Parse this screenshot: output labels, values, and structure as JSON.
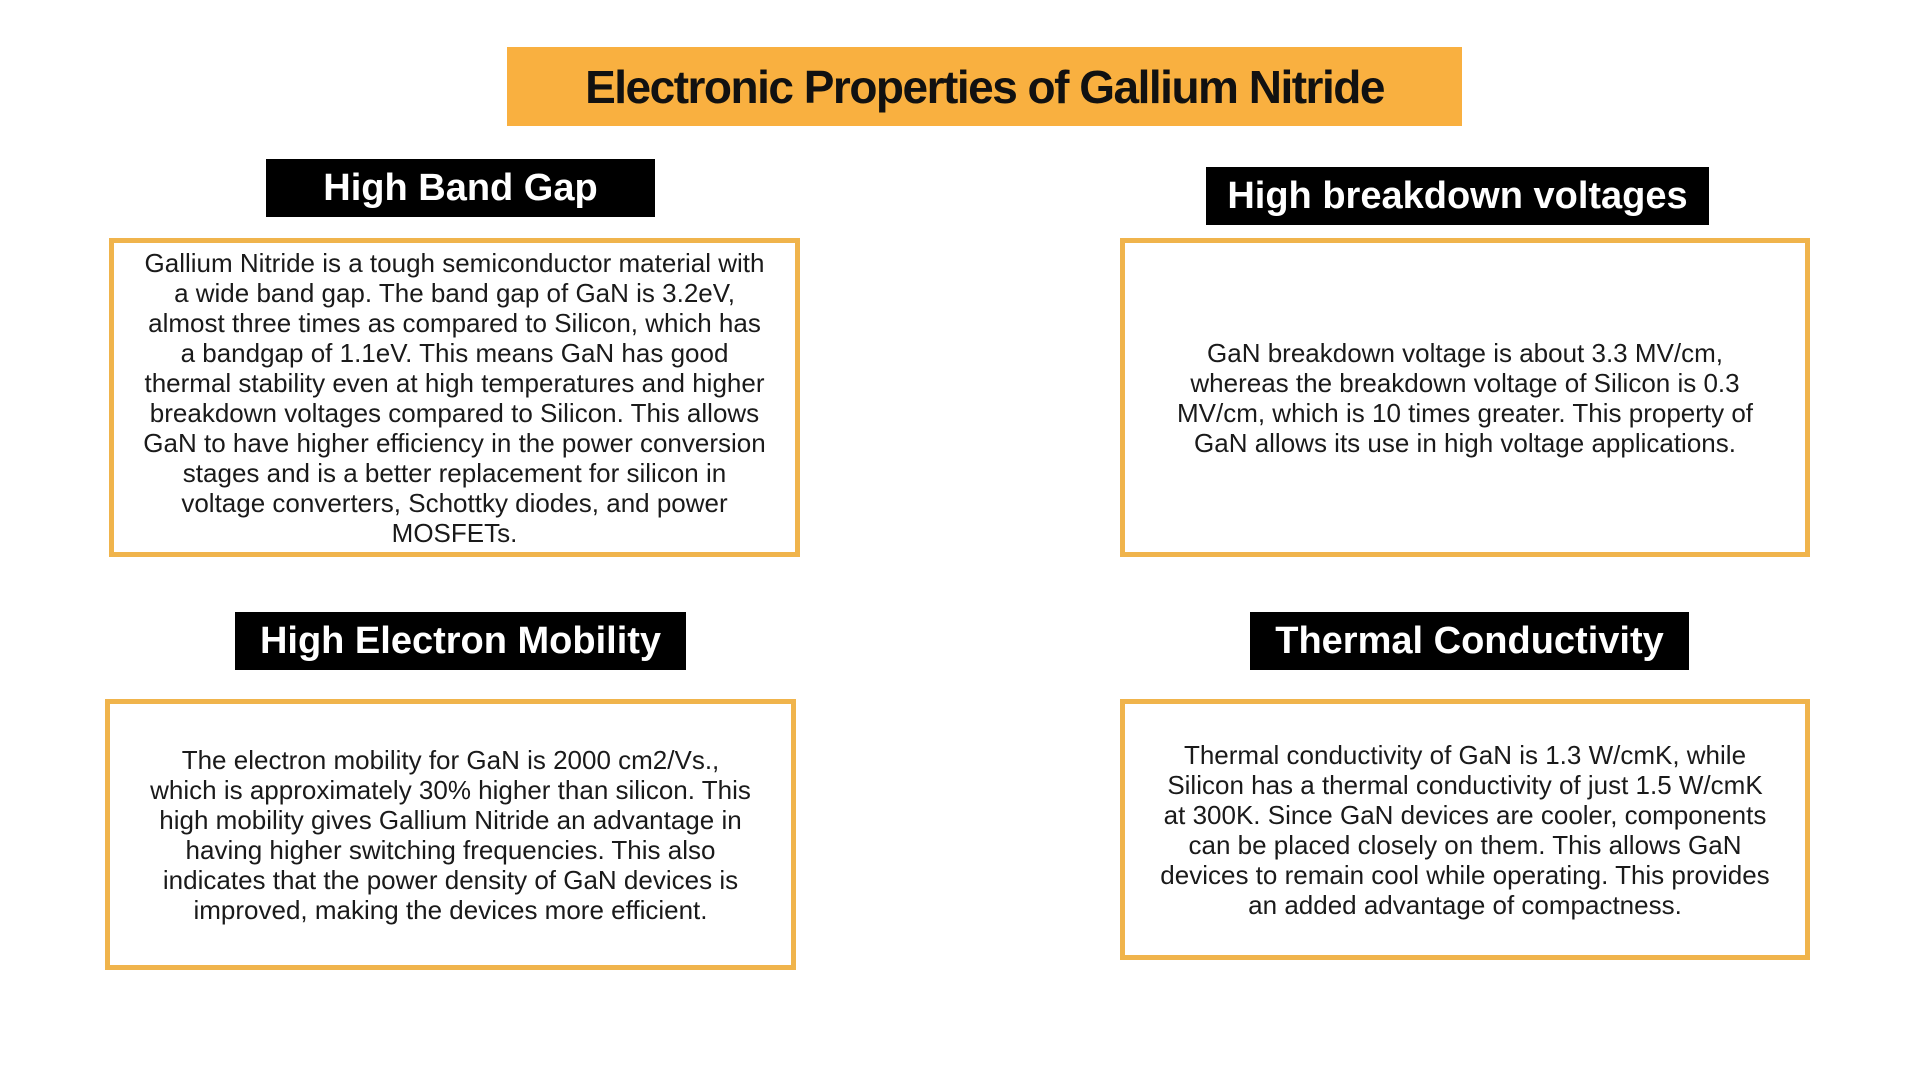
{
  "title": "Electronic Properties of Gallium Nitride",
  "accent_color": "#f9b040",
  "border_color": "#f0b44c",
  "sections": [
    {
      "heading": "High Band Gap",
      "body": "Gallium Nitride is a tough semiconductor material with a wide band gap. The band gap of GaN is 3.2eV, almost three times as compared to Silicon, which has a bandgap of 1.1eV. This means GaN has good thermal stability even at high temperatures and higher breakdown voltages compared to Silicon. This allows GaN to have higher efficiency in the power conversion stages and is a better replacement for silicon in voltage converters, Schottky diodes, and power MOSFETs."
    },
    {
      "heading": "High breakdown voltages",
      "body": "GaN breakdown voltage is about 3.3 MV/cm, whereas the breakdown voltage of Silicon is 0.3 MV/cm, which is 10 times greater. This property of GaN allows its use in high voltage applications."
    },
    {
      "heading": "High Electron Mobility",
      "body": "The electron mobility for GaN is 2000 cm2/Vs., which is approximately 30% higher than silicon. This high mobility gives Gallium Nitride an advantage in having higher switching frequencies. This also indicates that the power density of GaN devices is improved, making the devices more efficient."
    },
    {
      "heading": "Thermal Conductivity",
      "body": "Thermal conductivity of GaN is 1.3 W/cmK, while Silicon has a thermal conductivity of just 1.5 W/cmK at 300K. Since GaN devices are cooler, components can be placed closely on them. This allows GaN devices to remain cool while operating. This provides an added advantage of compactness."
    }
  ]
}
